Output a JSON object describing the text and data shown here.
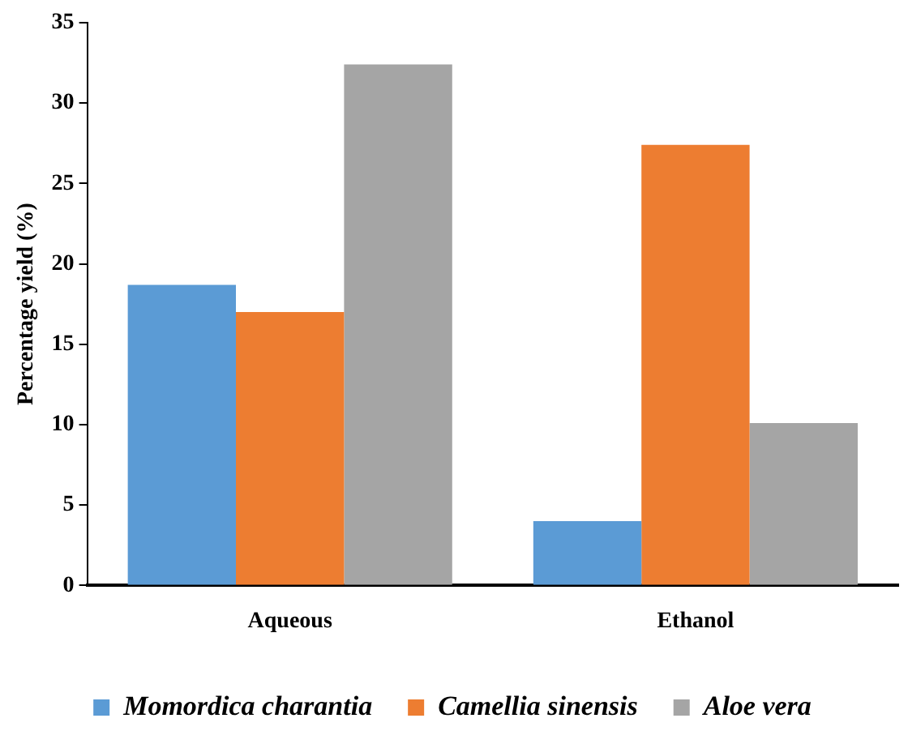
{
  "chart_data": {
    "type": "bar",
    "ylabel": "Percentage yield (%)",
    "categories": [
      "Aqueous",
      "Ethanol"
    ],
    "series": [
      {
        "name": "Momordica charantia",
        "color": "#5b9bd5",
        "values": [
          18.7,
          4.0
        ]
      },
      {
        "name": "Camellia sinensis",
        "color": "#ed7d31",
        "values": [
          17.0,
          27.4
        ]
      },
      {
        "name": "Aloe vera",
        "color": "#a5a5a5",
        "values": [
          32.4,
          10.1
        ]
      }
    ],
    "ylim": [
      0,
      35
    ],
    "yticks": [
      0,
      5,
      10,
      15,
      20,
      25,
      30,
      35
    ],
    "grid": false,
    "legend": "bottom"
  }
}
